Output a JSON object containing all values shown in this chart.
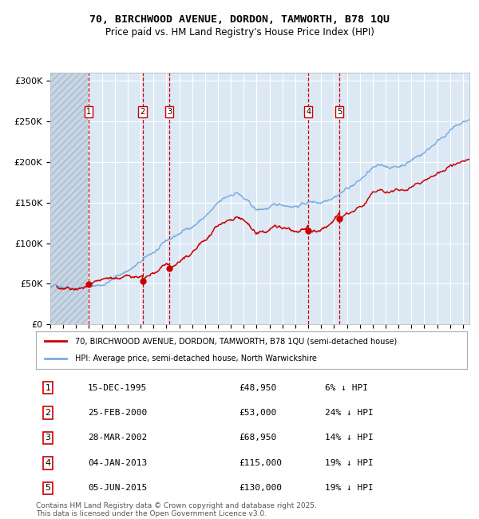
{
  "title1": "70, BIRCHWOOD AVENUE, DORDON, TAMWORTH, B78 1QU",
  "title2": "Price paid vs. HM Land Registry's House Price Index (HPI)",
  "ylabel_ticks": [
    "£0",
    "£50K",
    "£100K",
    "£150K",
    "£200K",
    "£250K",
    "£300K"
  ],
  "ytick_vals": [
    0,
    50000,
    100000,
    150000,
    200000,
    250000,
    300000
  ],
  "ylim": [
    0,
    310000
  ],
  "xlim_start": 1993.0,
  "xlim_end": 2025.5,
  "hatch_end": 1995.92,
  "property_color": "#cc0000",
  "hpi_color": "#7aadde",
  "legend_property": "70, BIRCHWOOD AVENUE, DORDON, TAMWORTH, B78 1QU (semi-detached house)",
  "legend_hpi": "HPI: Average price, semi-detached house, North Warwickshire",
  "transactions": [
    {
      "num": 1,
      "date": "15-DEC-1995",
      "price": 48950,
      "year": 1995.96,
      "note": "6% ↓ HPI"
    },
    {
      "num": 2,
      "date": "25-FEB-2000",
      "price": 53000,
      "year": 2000.15,
      "note": "24% ↓ HPI"
    },
    {
      "num": 3,
      "date": "28-MAR-2002",
      "price": 68950,
      "year": 2002.24,
      "note": "14% ↓ HPI"
    },
    {
      "num": 4,
      "date": "04-JAN-2013",
      "price": 115000,
      "year": 2013.01,
      "note": "19% ↓ HPI"
    },
    {
      "num": 5,
      "date": "05-JUN-2015",
      "price": 130000,
      "year": 2015.43,
      "note": "19% ↓ HPI"
    }
  ],
  "footer": "Contains HM Land Registry data © Crown copyright and database right 2025.\nThis data is licensed under the Open Government Licence v3.0.",
  "plot_bg": "#dce9f5",
  "grid_color": "#ffffff",
  "hatch_bg": "#c8d5e5"
}
